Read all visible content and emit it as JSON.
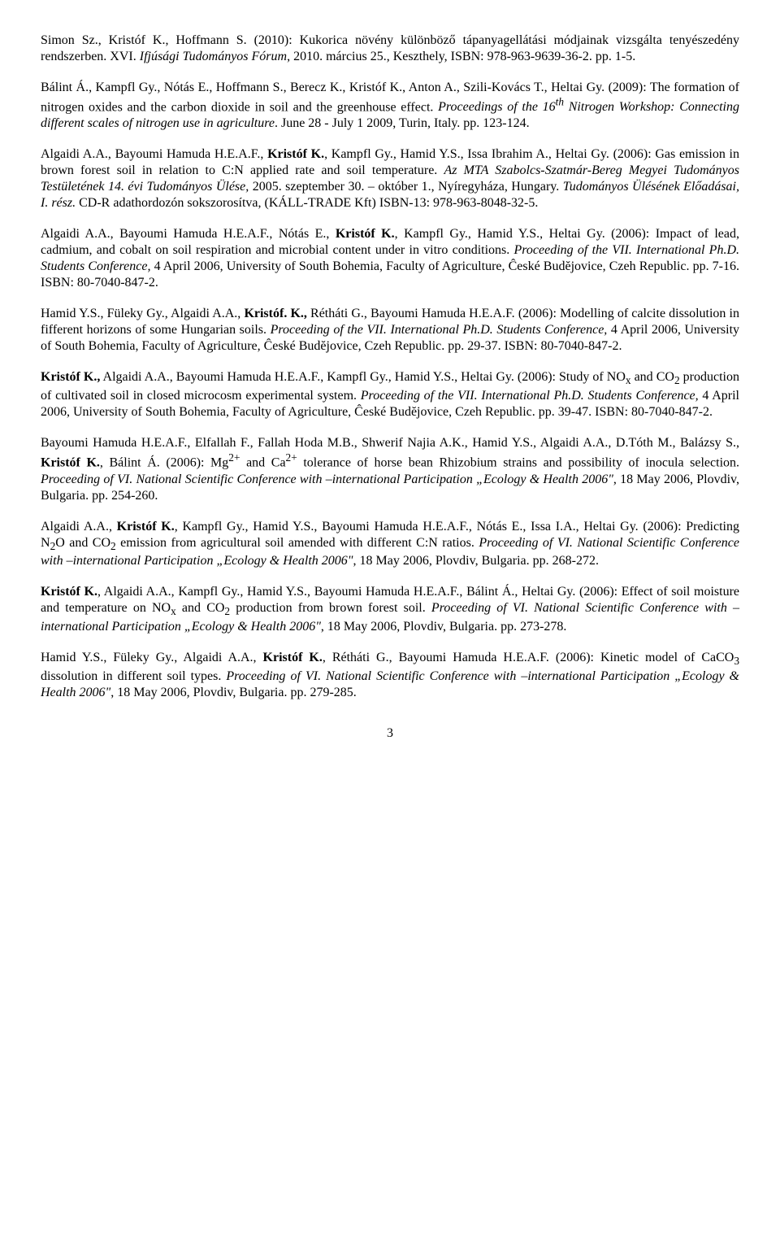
{
  "paragraphs": [
    "Simon Sz., Kristóf K., Hoffmann S. (2010): Kukorica növény különböző tápanyagellátási módjainak vizsgálta tenyészedény rendszerben. XVI. <i>Ifjúsági Tudományos Fórum</i>, 2010. március 25., Keszthely, ISBN: 978-963-9639-36-2. pp. 1-5.",
    "Bálint Á., Kampfl Gy., Nótás E., Hoffmann S., Berecz K., Kristóf K., Anton A., Szili-Kovács T., Heltai Gy. (2009): The formation of nitrogen oxides and the carbon dioxide in soil and the greenhouse effect. <i>Proceedings of the 16<sup>th</sup> Nitrogen Workshop: Connecting different scales of nitrogen use in agriculture</i>. June 28 - July 1 2009, Turin, Italy. pp. 123-124.",
    "Algaidi A.A., Bayoumi Hamuda H.E.A.F., <b>Kristóf K.</b>, Kampfl Gy., Hamid Y.S., Issa Ibrahim A., Heltai Gy. (2006): Gas emission in brown forest soil in relation to C:N applied rate and soil temperature. <i>Az MTA Szabolcs-Szatmár-Bereg Megyei Tudományos Testületének 14. évi Tudományos Ülése,</i> 2005. szeptember 30. – október 1., Nyíregyháza, Hungary. <i>Tudományos Ülésének Előadásai, I. rész.</i> CD-R adathordozón sokszorosítva, (KÁLL-TRADE Kft) ISBN-13: 978-963-8048-32-5.",
    "Algaidi A.A., Bayoumi Hamuda H.E.A.F., Nótás E., <b>Kristóf K.</b>, Kampfl Gy., Hamid Y.S., Heltai Gy. (2006): Impact of lead, cadmium, and cobalt on soil respiration and microbial content under in vitro conditions. <i>Proceeding of the VII. International Ph.D. Students Conference,</i> 4 April 2006, University of South Bohemia, Faculty of Agriculture, Ĉeské Budĕjovice, Czeh Republic. pp. 7-16. ISBN: 80-7040-847-2.",
    "Hamid Y.S., Füleky Gy., Algaidi A.A., <b>Kristóf. K.,</b> Rétháti G., Bayoumi Hamuda H.E.A.F. (2006): Modelling of calcite dissolution in fifferent horizons of some Hungarian soils. <i>Proceeding of the VII. International Ph.D. Students Conference,</i> 4 April 2006, University of South Bohemia, Faculty of Agriculture, Ĉeské Budĕjovice, Czeh Republic. pp. 29-37. ISBN: 80-7040-847-2.",
    "<b>Kristóf K.,</b> Algaidi A.A., Bayoumi Hamuda H.E.A.F., Kampfl Gy., Hamid Y.S., Heltai Gy. (2006): Study of NO<sub>x</sub> and CO<sub>2</sub> production of cultivated soil in closed microcosm experimental system. <i>Proceeding of the VII. International Ph.D. Students Conference,</i> 4 April 2006, University of South Bohemia, Faculty of Agriculture, Ĉeské Budĕjovice, Czeh Republic. pp. 39-47. ISBN: 80-7040-847-2.",
    "Bayoumi Hamuda H.E.A.F., Elfallah F., Fallah Hoda M.B., Shwerif Najia A.K., Hamid Y.S., Algaidi A.A., D.Tóth M., Balázsy S., <b>Kristóf K.</b>, Bálint Á. (2006): Mg<sup>2+</sup> and Ca<sup>2+</sup> tolerance of horse bean Rhizobium strains and possibility of inocula selection. <i>Proceeding of VI. National Scientific Conference with –international Participation „Ecology & Health 2006\"</i>, 18 May 2006, Plovdiv, Bulgaria. pp. 254-260.",
    "Algaidi A.A., <b>Kristóf K.</b>, Kampfl Gy., Hamid Y.S., Bayoumi Hamuda H.E.A.F., Nótás E., Issa I.A., Heltai Gy. (2006): Predicting N<sub>2</sub>O and CO<sub>2</sub> emission from agricultural soil amended with different C:N ratios. <i>Proceeding of VI. National Scientific Conference with –international Participation „Ecology & Health 2006\"</i>, 18 May 2006, Plovdiv, Bulgaria. pp. 268-272.",
    "<b>Kristóf K.</b>, Algaidi A.A., Kampfl Gy., Hamid Y.S., Bayoumi Hamuda H.E.A.F., Bálint Á., Heltai Gy. (2006): Effect of soil moisture and temperature on NO<sub>x</sub> and CO<sub>2</sub> production from brown forest soil. <i>Proceeding of VI. National Scientific Conference with –international Participation „Ecology & Health 2006\"</i>, 18 May 2006, Plovdiv, Bulgaria. pp. 273-278.",
    "Hamid Y.S., Füleky Gy., Algaidi A.A., <b>Kristóf K.</b>, Rétháti G., Bayoumi Hamuda H.E.A.F. (2006): Kinetic model of CaCO<sub>3</sub> dissolution in different soil types. <i>Proceeding of VI. National Scientific Conference with –international Participation „Ecology & Health 2006\"</i>, 18 May 2006, Plovdiv, Bulgaria. pp. 279-285."
  ],
  "page_number": "3"
}
